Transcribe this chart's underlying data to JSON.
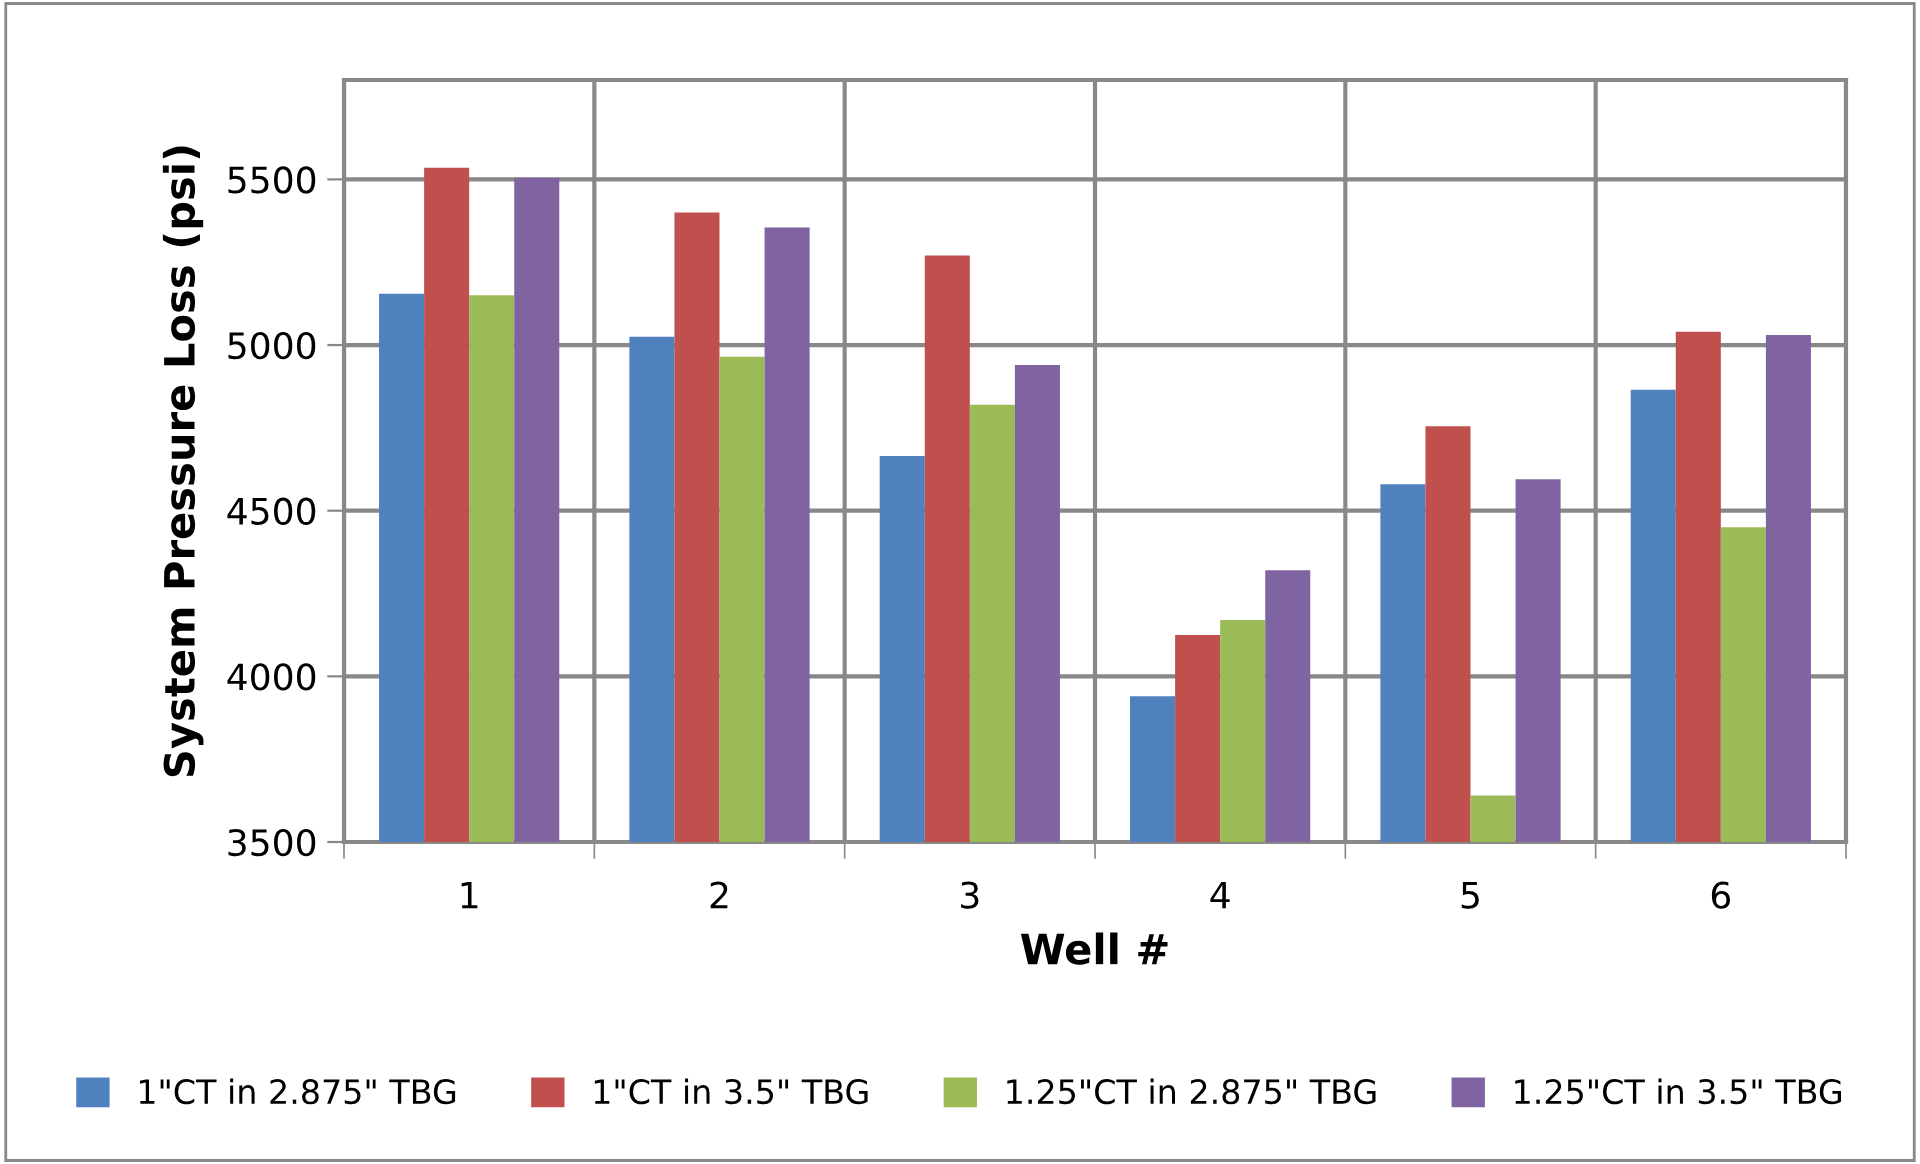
{
  "chart_data": {
    "type": "bar",
    "xlabel": "Well #",
    "ylabel": "System Pressure Loss (psi)",
    "categories": [
      "1",
      "2",
      "3",
      "4",
      "5",
      "6"
    ],
    "series": [
      {
        "name": "1\"CT in 2.875\" TBG",
        "color": "#4f81bd",
        "values": [
          5155,
          5025,
          4665,
          3940,
          4580,
          4865
        ]
      },
      {
        "name": "1\"CT in 3.5\" TBG",
        "color": "#c0504d",
        "values": [
          5535,
          5400,
          5270,
          4125,
          4755,
          5040
        ]
      },
      {
        "name": "1.25\"CT in 2.875\" TBG",
        "color": "#9bbb59",
        "values": [
          5150,
          4965,
          4820,
          4170,
          3640,
          4450
        ]
      },
      {
        "name": "1.25\"CT in 3.5\" TBG",
        "color": "#8064a2",
        "values": [
          5505,
          5355,
          4940,
          4320,
          4595,
          5030
        ]
      }
    ],
    "ylim": [
      3500,
      5800
    ],
    "yticks": [
      3500,
      4000,
      4500,
      5000,
      5500
    ],
    "grid": true,
    "legend": "bottom"
  }
}
